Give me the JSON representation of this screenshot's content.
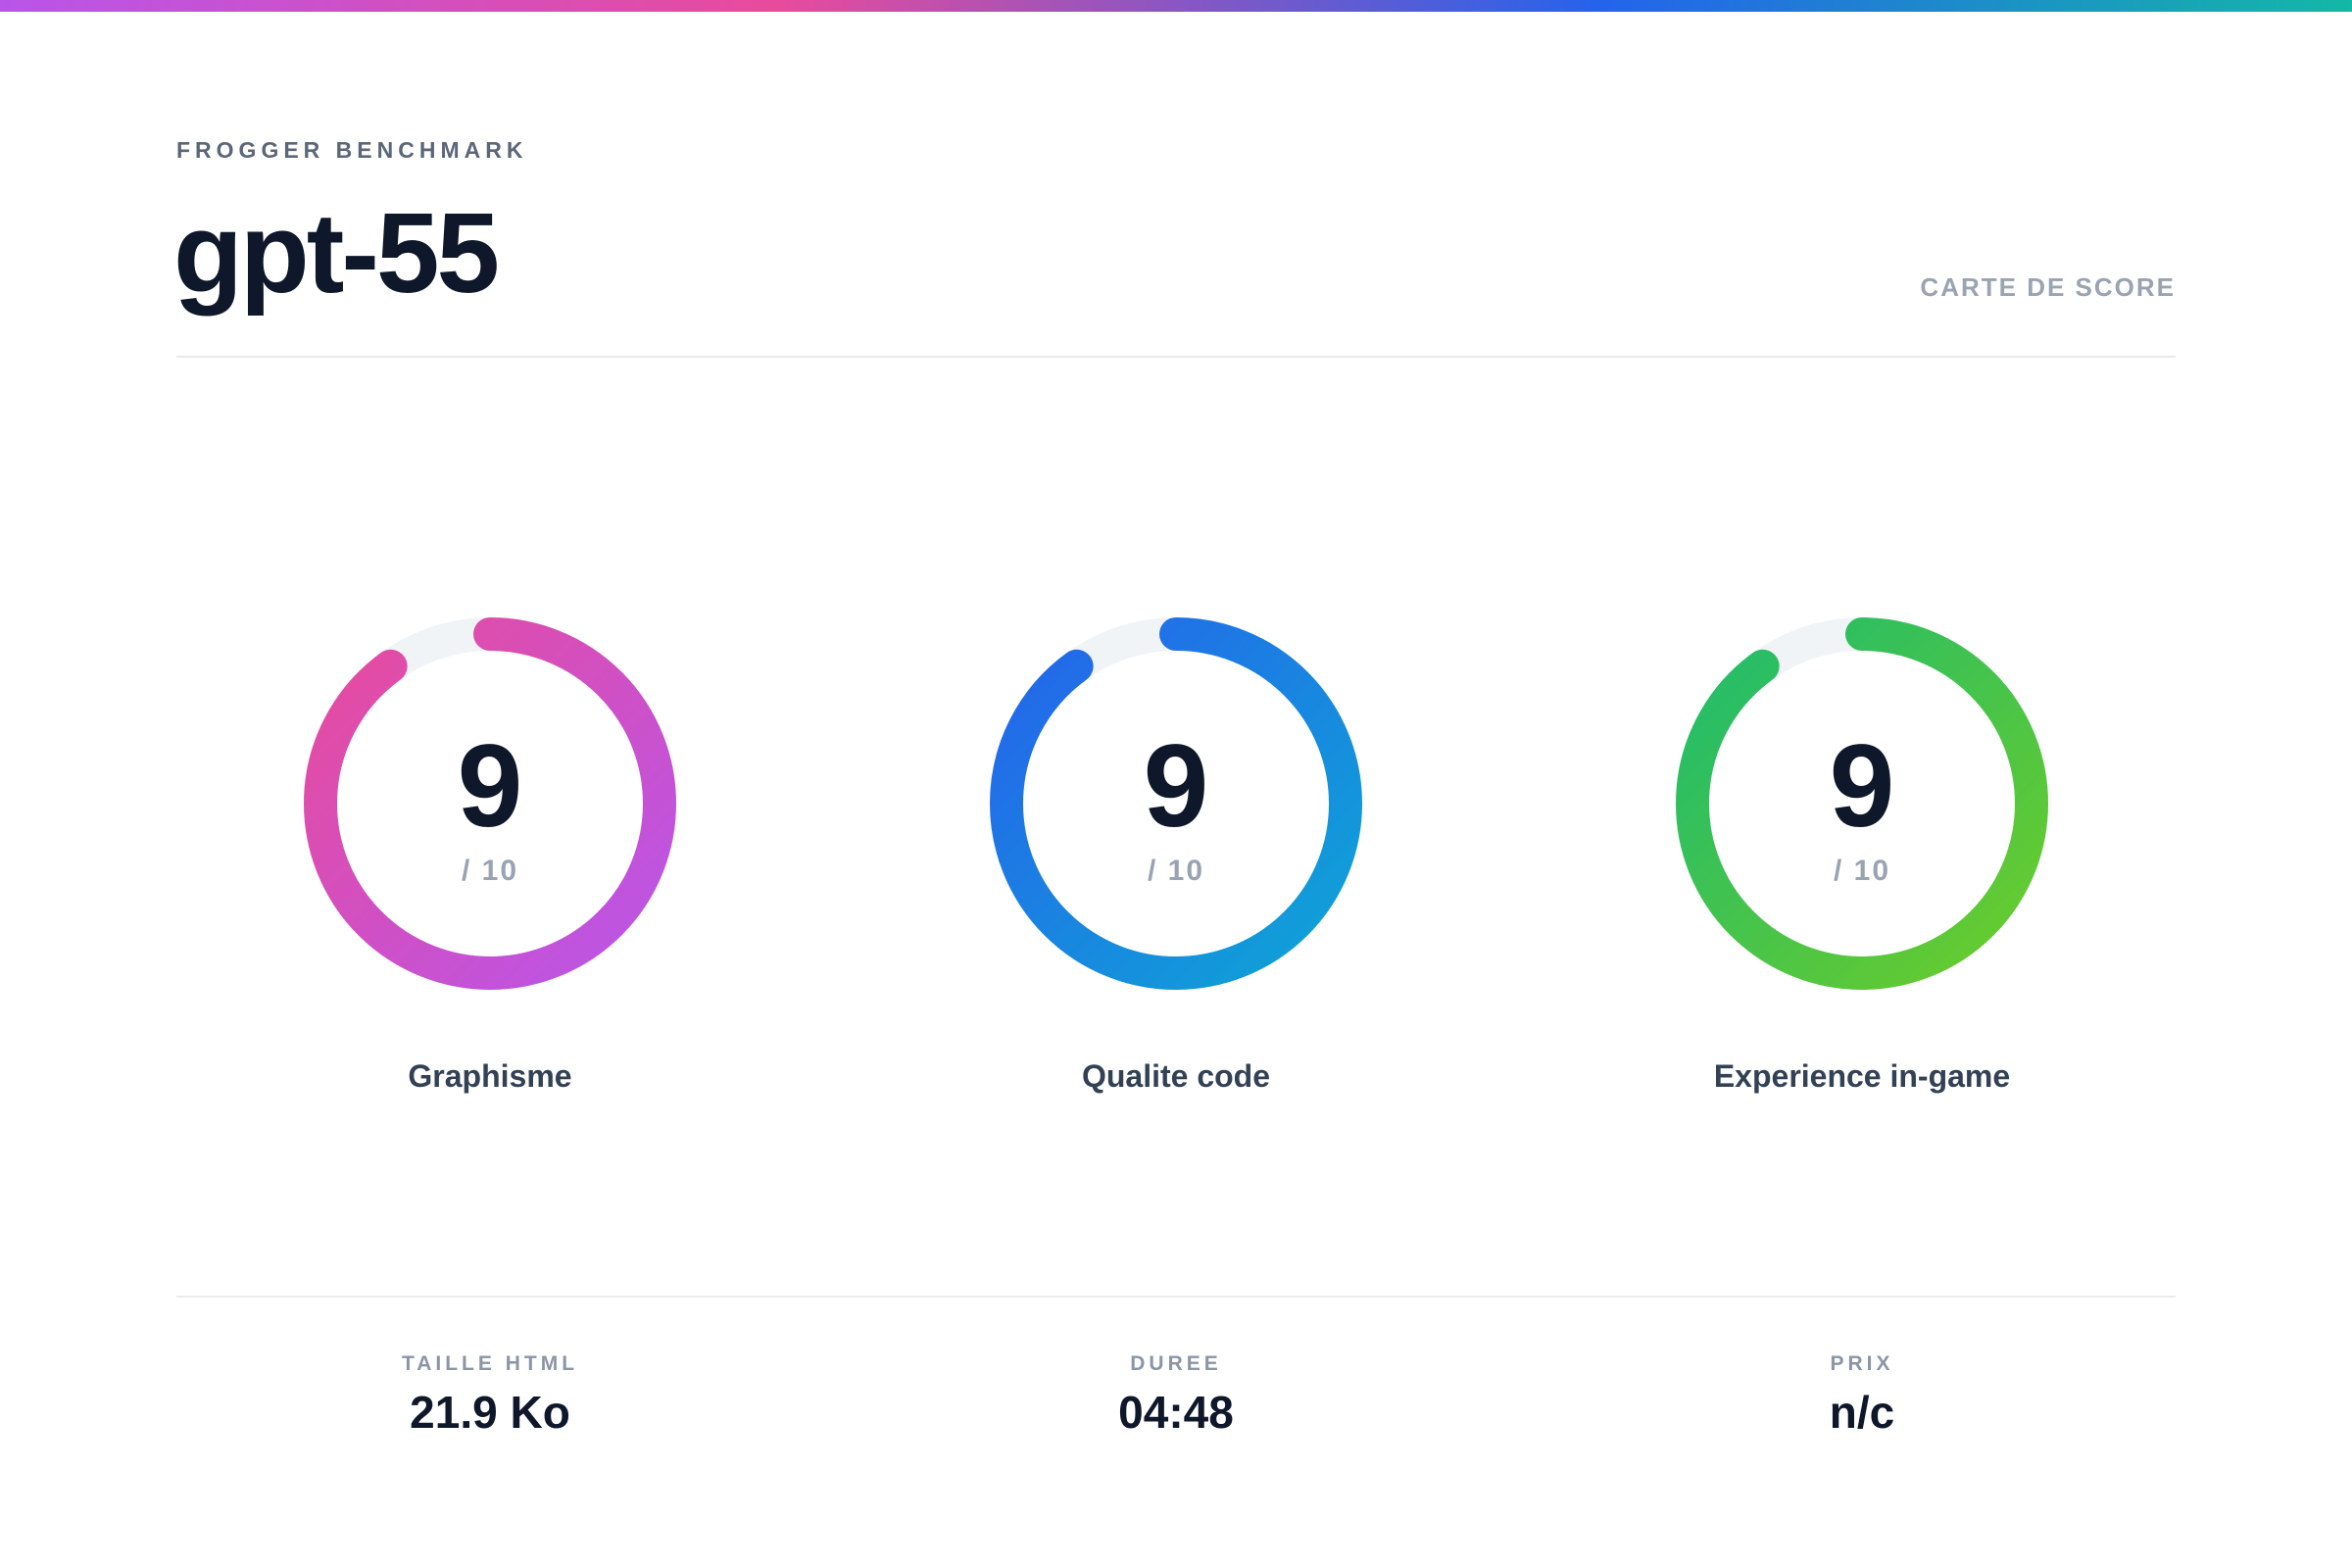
{
  "header": {
    "eyebrow": "FROGGER BENCHMARK",
    "title": "gpt-55",
    "tag": "CARTE DE SCORE"
  },
  "scores": [
    {
      "id": "graphisme",
      "value": "9",
      "max": "/ 10",
      "label": "Graphisme",
      "fraction": 0.9,
      "gradient": [
        "#b855ea",
        "#e84b9c"
      ]
    },
    {
      "id": "qualite-code",
      "value": "9",
      "max": "/ 10",
      "label": "Qualite code",
      "fraction": 0.9,
      "gradient": [
        "#0ea5d6",
        "#2563eb"
      ]
    },
    {
      "id": "experience",
      "value": "9",
      "max": "/ 10",
      "label": "Experience in-game",
      "fraction": 0.9,
      "gradient": [
        "#6ccc2a",
        "#1fbb6e"
      ]
    }
  ],
  "stats": [
    {
      "label": "TAILLE HTML",
      "value": "21.9 Ko"
    },
    {
      "label": "DUREE",
      "value": "04:48"
    },
    {
      "label": "PRIX",
      "value": "n/c"
    }
  ],
  "colors": {
    "track": "#f1f4f7",
    "text": "#0f172a",
    "muted": "#9aa3b2"
  }
}
